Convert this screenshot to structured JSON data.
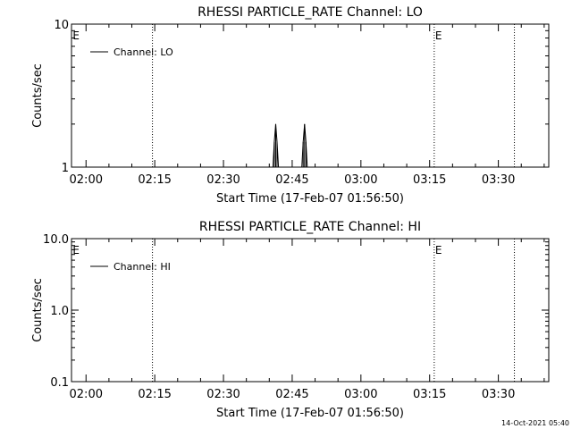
{
  "chart_data": [
    {
      "type": "line",
      "title": "RHESSI PARTICLE_RATE Channel: LO",
      "xlabel": "Start Time (17-Feb-07 01:56:50)",
      "ylabel": "Counts/sec",
      "yscale": "log",
      "ylim": [
        1,
        10
      ],
      "y_ticks": [
        "1",
        "10"
      ],
      "x_ticks": [
        "02:00",
        "02:15",
        "02:30",
        "02:45",
        "03:00",
        "03:15",
        "03:30"
      ],
      "x_tick_minutes": [
        0,
        15,
        30,
        45,
        60,
        75,
        90
      ],
      "xlim_minutes": [
        -3.17,
        101
      ],
      "event_lines_minutes": [
        14.5,
        76,
        93.5
      ],
      "event_labels": [
        {
          "text": "E",
          "at_minutes": -2.9
        },
        {
          "text": "E",
          "at_minutes": 76.2
        }
      ],
      "legend": {
        "label": "Channel: LO",
        "placement": "top-left"
      },
      "series": [
        {
          "name": "Channel: LO",
          "x_minutes": [
            40.8,
            41.1,
            41.4,
            41.7,
            42.0
          ],
          "y": [
            1,
            1.5,
            2,
            1.5,
            1
          ]
        },
        {
          "name": "Channel: LO",
          "x_minutes": [
            47.1,
            47.4,
            47.7,
            48.0,
            48.3
          ],
          "y": [
            1,
            1.5,
            2,
            1.5,
            1
          ]
        }
      ]
    },
    {
      "type": "line",
      "title": "RHESSI PARTICLE_RATE Channel: HI",
      "xlabel": "Start Time (17-Feb-07 01:56:50)",
      "ylabel": "Counts/sec",
      "yscale": "log",
      "ylim": [
        0.1,
        10
      ],
      "y_ticks": [
        "0.1",
        "1.0",
        "10.0"
      ],
      "x_ticks": [
        "02:00",
        "02:15",
        "02:30",
        "02:45",
        "03:00",
        "03:15",
        "03:30"
      ],
      "x_tick_minutes": [
        0,
        15,
        30,
        45,
        60,
        75,
        90
      ],
      "xlim_minutes": [
        -3.17,
        101
      ],
      "event_lines_minutes": [
        14.5,
        76,
        93.5
      ],
      "event_labels": [
        {
          "text": "E",
          "at_minutes": -2.9
        },
        {
          "text": "E",
          "at_minutes": 76.2
        }
      ],
      "legend": {
        "label": "Channel: HI",
        "placement": "top-left"
      },
      "series": []
    }
  ],
  "footer": {
    "timestamp": "14-Oct-2021 05:40"
  }
}
